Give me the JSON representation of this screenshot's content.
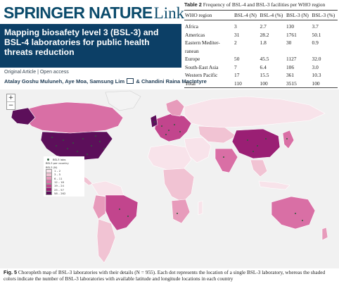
{
  "brand": {
    "part1": "SPRINGER NATURE",
    "part2": "Link"
  },
  "article": {
    "title": "Mapping biosafety level 3 (BSL-3) and BSL-4 laboratories for public health threats reduction",
    "type": "Original Article",
    "access": "Open access",
    "authors_before_mail": "Atalay Goshu Muluneh, Aye Moa, Samsung Lim",
    "authors_after_mail": "& Chandini Raina MacIntyre"
  },
  "table": {
    "label": "Table 2",
    "caption": "Frequency of BSL-4 and BSL-3 facilities per WHO region",
    "headers": [
      "WHO region",
      "BSL-4 (N)",
      "BSL-4 (%)",
      "BSL-3 (N)",
      "BSL-3 (%)"
    ],
    "rows": [
      [
        "Africa",
        "3",
        "2.7",
        "130",
        "3.7"
      ],
      [
        "Americas",
        "31",
        "28.2",
        "1761",
        "50.1"
      ],
      [
        "Eastern Mediter-\nranean",
        "2",
        "1.8",
        "30",
        "0.9"
      ],
      [
        "Europe",
        "50",
        "45.5",
        "1127",
        "32.0"
      ],
      [
        "South-East Asia",
        "7",
        "6.4",
        "106",
        "3.0"
      ],
      [
        "Western Pacific",
        "17",
        "15.5",
        "361",
        "10.3"
      ],
      [
        "Total",
        "110",
        "100",
        "3515",
        "100"
      ]
    ]
  },
  "map": {
    "zoom_in": "+",
    "zoom_out": "−",
    "legend": {
      "dot_label": "BSL3 labs",
      "title1": "BSL3 per country",
      "title2": "BSL3 (N)",
      "classes": [
        {
          "label": "1 – 2",
          "color": "#f8e3ea"
        },
        {
          "label": "3 – 5",
          "color": "#f1c3d3"
        },
        {
          "label": "6 – 11",
          "color": "#e79bbb"
        },
        {
          "label": "12 – 18",
          "color": "#d96fa5"
        },
        {
          "label": "19 – 24",
          "color": "#c2458d"
        },
        {
          "label": "25 – 57",
          "color": "#9a1f74"
        },
        {
          "label": "58 – 262",
          "color": "#5c0f5a"
        }
      ]
    }
  },
  "figure": {
    "label": "Fig. 5",
    "caption": "Choropleth map of BSL-3 laboratories with their details (N = 955). Each dot represents the location of a single BSL-3 laboratory, whereas the shaded colors indicate the number of BSL-3 laboratories with available latitude and longitude locations in each country"
  }
}
